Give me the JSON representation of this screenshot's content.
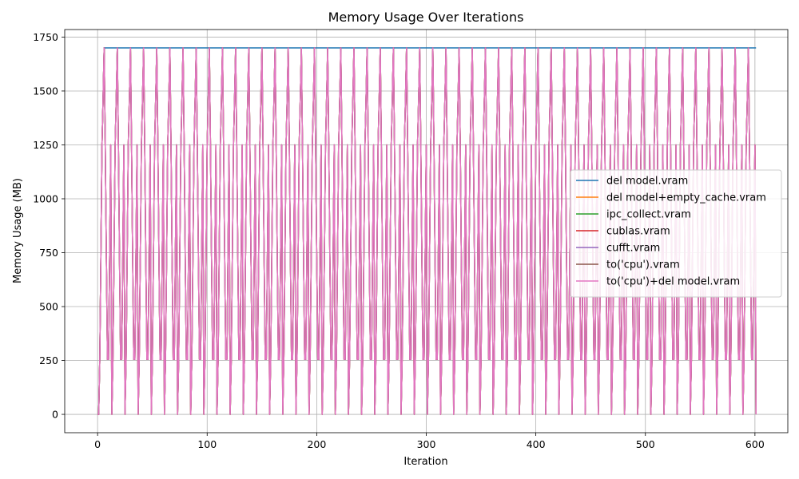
{
  "chart_data": {
    "type": "line",
    "title": "Memory Usage Over Iterations",
    "xlabel": "Iteration",
    "ylabel": "Memory Usage (MB)",
    "xlim": [
      -30,
      630
    ],
    "ylim": [
      -85,
      1785
    ],
    "xticks": [
      0,
      100,
      200,
      300,
      400,
      500,
      600
    ],
    "yticks": [
      0,
      250,
      500,
      750,
      1000,
      1250,
      1500,
      1750
    ],
    "grid": true,
    "legend_position": "center-right",
    "cycle": {
      "start_iteration": 0,
      "period": 12,
      "phase_offset": 1,
      "end_iteration": 601,
      "pattern_mb": [
        0,
        255,
        730,
        1245,
        1460,
        1700,
        1250,
        730,
        255,
        255,
        730,
        1250
      ]
    },
    "series": [
      {
        "name": "del model.vram",
        "color": "#1f77b4",
        "plateau_mb": 1700,
        "plateau_from": 6
      },
      {
        "name": "del model+empty_cache.vram",
        "color": "#ff7f0e"
      },
      {
        "name": "ipc_collect.vram",
        "color": "#2ca02c"
      },
      {
        "name": "cublas.vram",
        "color": "#d62728"
      },
      {
        "name": "cufft.vram",
        "color": "#9467bd"
      },
      {
        "name": "to('cpu').vram",
        "color": "#8c564b"
      },
      {
        "name": "to('cpu')+del model.vram",
        "color": "#e377c2"
      }
    ]
  }
}
